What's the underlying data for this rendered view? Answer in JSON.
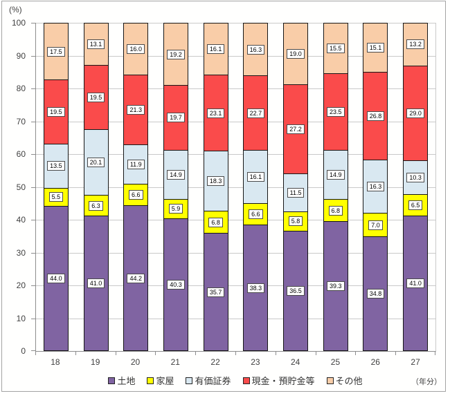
{
  "chart_data": {
    "type": "bar",
    "stacked": true,
    "title": "",
    "y_unit_label": "(%)",
    "x_unit_label": "（年分）",
    "ylim": [
      0,
      100
    ],
    "y_ticks": [
      0,
      10,
      20,
      30,
      40,
      50,
      60,
      70,
      80,
      90,
      100
    ],
    "grid": "horizontal",
    "legend_position": "bottom",
    "categories": [
      "18",
      "19",
      "20",
      "21",
      "22",
      "23",
      "24",
      "25",
      "26",
      "27"
    ],
    "series": [
      {
        "name": "土地",
        "color": "#8064A2",
        "values": [
          44.0,
          41.0,
          44.2,
          40.3,
          35.7,
          38.3,
          36.5,
          39.3,
          34.8,
          41.0
        ]
      },
      {
        "name": "家屋",
        "color": "#FFFF00",
        "values": [
          5.5,
          6.3,
          6.6,
          5.9,
          6.8,
          6.6,
          5.8,
          6.8,
          7.0,
          6.5
        ]
      },
      {
        "name": "有価証券",
        "color": "#D9E8F1",
        "values": [
          13.5,
          20.1,
          11.9,
          14.9,
          18.3,
          16.1,
          11.5,
          14.9,
          16.3,
          10.3
        ]
      },
      {
        "name": "現金・預貯金等",
        "color": "#FA4B4B",
        "values": [
          19.5,
          19.5,
          21.3,
          19.7,
          23.1,
          22.7,
          27.2,
          23.5,
          26.8,
          29.0
        ]
      },
      {
        "name": "その他",
        "color": "#F9CDA8",
        "values": [
          17.5,
          13.1,
          16.0,
          19.2,
          16.1,
          16.3,
          19.0,
          15.5,
          15.1,
          13.2
        ]
      }
    ],
    "colors": {
      "gridline": "#C9C9C9",
      "axis": "#8C8C8C",
      "segment_border": "#151515",
      "label_box_bg": "#FFFFFF",
      "label_box_border": "#4A4A4A",
      "text": "#404040",
      "frame_border": "#A3A3A3"
    }
  }
}
